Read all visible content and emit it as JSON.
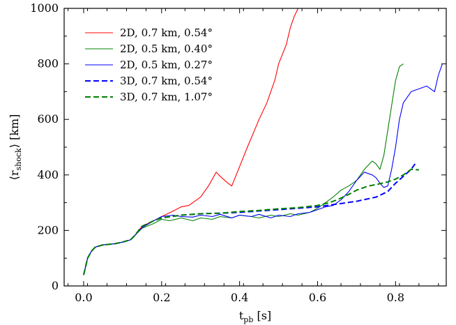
{
  "chart_data": {
    "type": "line",
    "title": "",
    "xlabel": "t",
    "xlabel_sub": "pb",
    "xlabel_unit": " [s]",
    "ylabel": "⟨r",
    "ylabel_sub": "shock",
    "ylabel_unit": "⟩ [km]",
    "xlim": [
      -0.05,
      0.93
    ],
    "ylim": [
      0,
      1000
    ],
    "xticks": [
      0.0,
      0.2,
      0.4,
      0.6,
      0.8
    ],
    "xtick_labels": [
      "0.0",
      "0.2",
      "0.4",
      "0.6",
      "0.8"
    ],
    "yticks": [
      0,
      200,
      400,
      600,
      800,
      1000
    ],
    "ytick_labels": [
      "0",
      "200",
      "400",
      "600",
      "800",
      "1000"
    ],
    "grid": false,
    "legend_position": "top-left",
    "series": [
      {
        "name": "2D, 0.7 km, 0.54°",
        "color": "#ff0000",
        "dash": "solid",
        "x": [
          0.0,
          0.01,
          0.02,
          0.03,
          0.05,
          0.08,
          0.1,
          0.12,
          0.13,
          0.15,
          0.18,
          0.2,
          0.23,
          0.25,
          0.27,
          0.3,
          0.32,
          0.33,
          0.34,
          0.35,
          0.37,
          0.38,
          0.4,
          0.42,
          0.45,
          0.47,
          0.49,
          0.5,
          0.52,
          0.53,
          0.54,
          0.55
        ],
        "y": [
          40,
          100,
          125,
          140,
          148,
          152,
          158,
          166,
          180,
          215,
          235,
          250,
          270,
          285,
          290,
          320,
          360,
          385,
          410,
          395,
          370,
          360,
          430,
          500,
          600,
          660,
          740,
          800,
          870,
          930,
          970,
          1000
        ]
      },
      {
        "name": "2D, 0.5 km, 0.40°",
        "color": "#008000",
        "dash": "solid",
        "x": [
          0.0,
          0.01,
          0.02,
          0.03,
          0.05,
          0.08,
          0.1,
          0.12,
          0.13,
          0.15,
          0.18,
          0.2,
          0.22,
          0.25,
          0.28,
          0.3,
          0.33,
          0.35,
          0.38,
          0.4,
          0.43,
          0.45,
          0.48,
          0.5,
          0.53,
          0.55,
          0.58,
          0.6,
          0.62,
          0.64,
          0.66,
          0.68,
          0.7,
          0.72,
          0.74,
          0.75,
          0.76,
          0.77,
          0.78,
          0.79,
          0.8,
          0.81,
          0.82
        ],
        "y": [
          40,
          100,
          125,
          140,
          148,
          152,
          158,
          166,
          180,
          208,
          225,
          240,
          235,
          245,
          235,
          245,
          240,
          250,
          245,
          255,
          250,
          245,
          255,
          250,
          260,
          255,
          265,
          280,
          300,
          320,
          345,
          360,
          380,
          420,
          450,
          440,
          420,
          470,
          560,
          650,
          740,
          790,
          800
        ]
      },
      {
        "name": "2D, 0.5 km, 0.27°",
        "color": "#0000ff",
        "dash": "solid",
        "x": [
          0.0,
          0.01,
          0.02,
          0.03,
          0.05,
          0.08,
          0.1,
          0.12,
          0.13,
          0.15,
          0.18,
          0.2,
          0.23,
          0.25,
          0.28,
          0.3,
          0.33,
          0.35,
          0.38,
          0.4,
          0.43,
          0.45,
          0.48,
          0.5,
          0.53,
          0.55,
          0.58,
          0.6,
          0.62,
          0.64,
          0.66,
          0.68,
          0.7,
          0.72,
          0.74,
          0.75,
          0.76,
          0.77,
          0.78,
          0.79,
          0.8,
          0.81,
          0.82,
          0.84,
          0.86,
          0.88,
          0.9,
          0.91,
          0.92
        ],
        "y": [
          40,
          100,
          125,
          140,
          148,
          152,
          158,
          166,
          180,
          210,
          235,
          250,
          255,
          250,
          248,
          255,
          250,
          258,
          245,
          255,
          250,
          258,
          245,
          255,
          250,
          260,
          265,
          275,
          285,
          290,
          310,
          340,
          380,
          410,
          400,
          390,
          370,
          355,
          360,
          420,
          500,
          600,
          660,
          700,
          710,
          720,
          700,
          760,
          800
        ]
      },
      {
        "name": "3D, 0.7 km, 0.54°",
        "color": "#0000ff",
        "dash": "dashed",
        "x": [
          0.0,
          0.01,
          0.02,
          0.03,
          0.05,
          0.08,
          0.1,
          0.12,
          0.13,
          0.15,
          0.18,
          0.2,
          0.25,
          0.3,
          0.35,
          0.4,
          0.45,
          0.5,
          0.55,
          0.6,
          0.65,
          0.7,
          0.75,
          0.78,
          0.8,
          0.82,
          0.84,
          0.85
        ],
        "y": [
          40,
          100,
          125,
          140,
          148,
          152,
          158,
          166,
          180,
          215,
          235,
          245,
          255,
          260,
          262,
          265,
          270,
          275,
          280,
          285,
          295,
          305,
          320,
          340,
          370,
          395,
          420,
          440
        ]
      },
      {
        "name": "3D, 0.7 km, 1.07°",
        "color": "#008000",
        "dash": "dashed",
        "x": [
          0.0,
          0.01,
          0.02,
          0.03,
          0.05,
          0.08,
          0.1,
          0.12,
          0.13,
          0.15,
          0.18,
          0.2,
          0.25,
          0.3,
          0.35,
          0.4,
          0.45,
          0.5,
          0.55,
          0.6,
          0.63,
          0.65,
          0.68,
          0.7,
          0.73,
          0.75,
          0.78,
          0.8,
          0.82,
          0.84,
          0.86
        ],
        "y": [
          40,
          100,
          125,
          140,
          148,
          152,
          158,
          166,
          180,
          215,
          235,
          245,
          255,
          260,
          262,
          268,
          272,
          278,
          282,
          290,
          300,
          310,
          330,
          345,
          360,
          365,
          375,
          385,
          400,
          420,
          418
        ]
      }
    ]
  }
}
